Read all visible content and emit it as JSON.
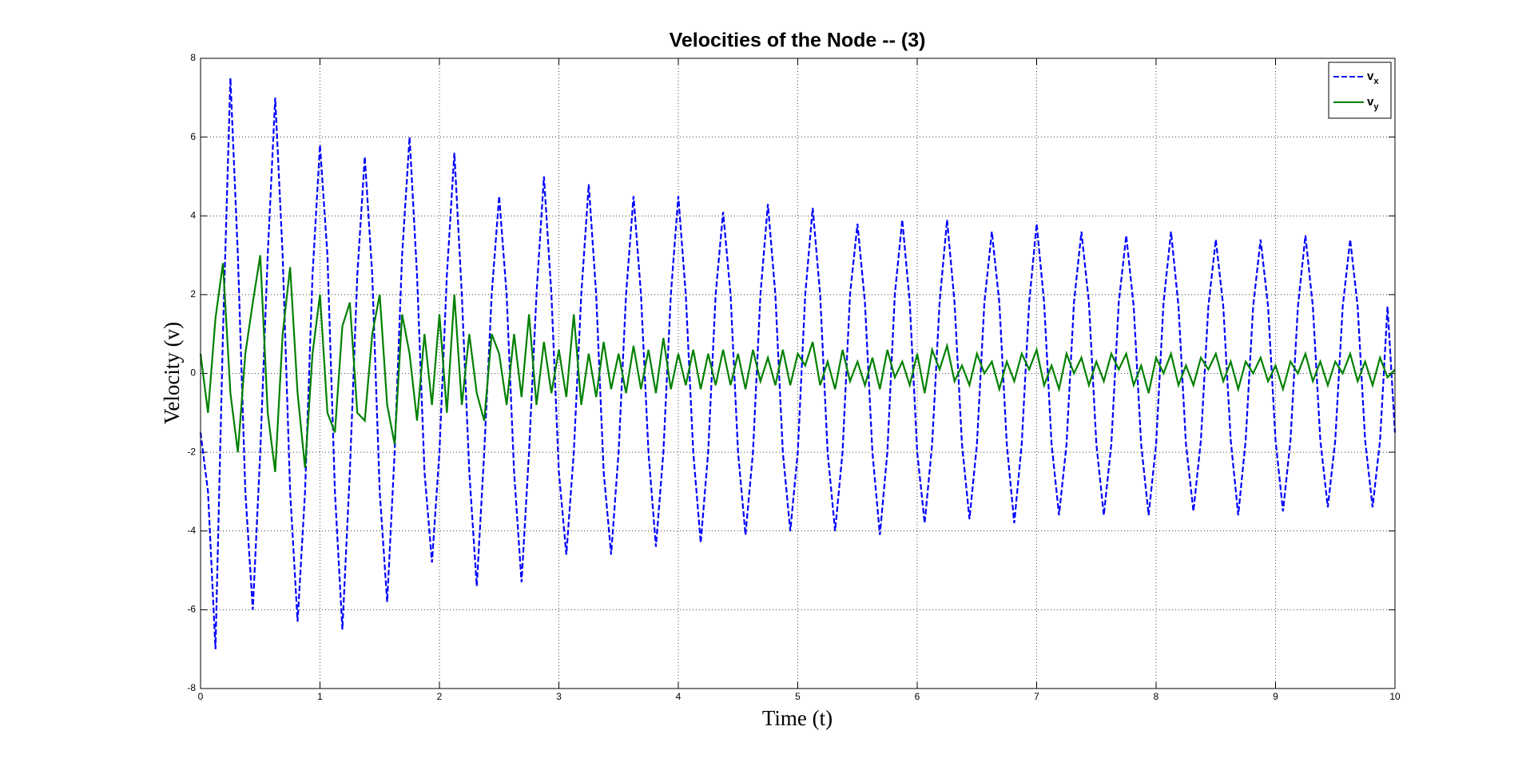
{
  "chart_data": {
    "type": "line",
    "title": "Velocities of the Node -- (3)",
    "x_label": "Time (t)",
    "y_label": "Velocity (v)",
    "x": [
      0,
      0.0625,
      0.125,
      0.1875,
      0.25,
      0.3125,
      0.375,
      0.4375,
      0.5,
      0.5625,
      0.625,
      0.6875,
      0.75,
      0.8125,
      0.875,
      0.9375,
      1,
      1.0625,
      1.125,
      1.1875,
      1.25,
      1.3125,
      1.375,
      1.4375,
      1.5,
      1.5625,
      1.625,
      1.6875,
      1.75,
      1.8125,
      1.875,
      1.9375,
      2,
      2.0625,
      2.125,
      2.1875,
      2.25,
      2.3125,
      2.375,
      2.4375,
      2.5,
      2.5625,
      2.625,
      2.6875,
      2.75,
      2.8125,
      2.875,
      2.9375,
      3,
      3.0625,
      3.125,
      3.1875,
      3.25,
      3.3125,
      3.375,
      3.4375,
      3.5,
      3.5625,
      3.625,
      3.6875,
      3.75,
      3.8125,
      3.875,
      3.9375,
      4,
      4.0625,
      4.125,
      4.1875,
      4.25,
      4.3125,
      4.375,
      4.4375,
      4.5,
      4.5625,
      4.625,
      4.6875,
      4.75,
      4.8125,
      4.875,
      4.9375,
      5,
      5.0625,
      5.125,
      5.1875,
      5.25,
      5.3125,
      5.375,
      5.4375,
      5.5,
      5.5625,
      5.625,
      5.6875,
      5.75,
      5.8125,
      5.875,
      5.9375,
      6,
      6.0625,
      6.125,
      6.1875,
      6.25,
      6.3125,
      6.375,
      6.4375,
      6.5,
      6.5625,
      6.625,
      6.6875,
      6.75,
      6.8125,
      6.875,
      6.9375,
      7,
      7.0625,
      7.125,
      7.1875,
      7.25,
      7.3125,
      7.375,
      7.4375,
      7.5,
      7.5625,
      7.625,
      7.6875,
      7.75,
      7.8125,
      7.875,
      7.9375,
      8,
      8.0625,
      8.125,
      8.1875,
      8.25,
      8.3125,
      8.375,
      8.4375,
      8.5,
      8.5625,
      8.625,
      8.6875,
      8.75,
      8.8125,
      8.875,
      8.9375,
      9,
      9.0625,
      9.125,
      9.1875,
      9.25,
      9.3125,
      9.375,
      9.4375,
      9.5,
      9.5625,
      9.625,
      9.6875,
      9.75,
      9.8125,
      9.875,
      9.9375,
      10
    ],
    "series": [
      {
        "name": "vx",
        "color": "#0000ff",
        "linestyle": "dashed",
        "values": [
          -1.5,
          -3,
          -7,
          1,
          7.5,
          3,
          -3,
          -6,
          -2,
          3,
          7,
          3,
          -3,
          -6.3,
          -3,
          2.5,
          5.8,
          3,
          -3,
          -6.5,
          -2.5,
          2.5,
          5.5,
          2.5,
          -3,
          -5.8,
          -2,
          3,
          6,
          2.5,
          -2.5,
          -4.8,
          -2,
          2.5,
          5.6,
          2,
          -2.5,
          -5.4,
          -2,
          2,
          4.5,
          2,
          -2.5,
          -5.3,
          -2,
          2,
          5,
          2,
          -2.5,
          -4.6,
          -2,
          2,
          4.8,
          2,
          -2.5,
          -4.6,
          -2,
          2,
          4.5,
          2,
          -2,
          -4.4,
          -2,
          2,
          4.5,
          2,
          -2,
          -4.3,
          -2,
          2,
          4.1,
          2,
          -2,
          -4.1,
          -2,
          2,
          4.3,
          2,
          -2,
          -4,
          -2,
          2,
          4.2,
          2,
          -2,
          -4,
          -2,
          2,
          3.8,
          1.8,
          -2,
          -4.1,
          -2,
          2,
          3.9,
          1.8,
          -2,
          -3.8,
          -1.8,
          1.8,
          3.9,
          1.8,
          -1.8,
          -3.7,
          -1.8,
          1.8,
          3.6,
          1.8,
          -1.8,
          -3.8,
          -1.8,
          1.8,
          3.8,
          1.8,
          -1.8,
          -3.6,
          -1.8,
          1.8,
          3.6,
          1.8,
          -1.8,
          -3.6,
          -1.8,
          1.8,
          3.5,
          1.7,
          -1.8,
          -3.6,
          -1.8,
          1.8,
          3.6,
          1.7,
          -1.8,
          -3.5,
          -1.7,
          1.7,
          3.4,
          1.7,
          -1.7,
          -3.6,
          -1.7,
          1.7,
          3.4,
          1.7,
          -1.7,
          -3.5,
          -1.7,
          1.7,
          3.5,
          1.7,
          -1.7,
          -3.4,
          -1.7,
          1.7,
          3.4,
          1.7,
          -1.7,
          -3.4,
          -1.7,
          1.7,
          -1.5
        ]
      },
      {
        "name": "vy",
        "color": "#008000",
        "linestyle": "solid",
        "values": [
          0.5,
          -1,
          1.4,
          2.8,
          -0.5,
          -2,
          0.5,
          1.8,
          3,
          -1,
          -2.5,
          1,
          2.7,
          -0.5,
          -2.4,
          0.5,
          2,
          -1,
          -1.5,
          1.2,
          1.8,
          -1,
          -1.2,
          1,
          2,
          -0.8,
          -1.8,
          1.5,
          0.5,
          -1.2,
          1,
          -0.8,
          1.5,
          -1,
          2,
          -0.8,
          1,
          -0.5,
          -1.2,
          1,
          0.5,
          -0.8,
          1,
          -0.6,
          1.5,
          -0.8,
          0.8,
          -0.5,
          0.6,
          -0.6,
          1.5,
          -0.8,
          0.5,
          -0.6,
          0.8,
          -0.4,
          0.5,
          -0.5,
          0.7,
          -0.4,
          0.6,
          -0.5,
          0.9,
          -0.4,
          0.5,
          -0.3,
          0.6,
          -0.4,
          0.5,
          -0.3,
          0.6,
          -0.3,
          0.5,
          -0.4,
          0.6,
          -0.2,
          0.4,
          -0.3,
          0.6,
          -0.3,
          0.5,
          0.2,
          0.8,
          -0.3,
          0.3,
          -0.4,
          0.6,
          -0.2,
          0.3,
          -0.3,
          0.4,
          -0.4,
          0.6,
          -0.1,
          0.3,
          -0.3,
          0.5,
          -0.5,
          0.6,
          0.1,
          0.7,
          -0.2,
          0.2,
          -0.3,
          0.5,
          0,
          0.3,
          -0.4,
          0.3,
          -0.2,
          0.5,
          0.1,
          0.6,
          -0.3,
          0.2,
          -0.4,
          0.5,
          0,
          0.4,
          -0.3,
          0.3,
          -0.2,
          0.5,
          0.1,
          0.5,
          -0.3,
          0.2,
          -0.5,
          0.4,
          0,
          0.5,
          -0.3,
          0.2,
          -0.3,
          0.4,
          0.1,
          0.5,
          -0.2,
          0.3,
          -0.4,
          0.3,
          0,
          0.4,
          -0.2,
          0.2,
          -0.4,
          0.3,
          0,
          0.5,
          -0.2,
          0.3,
          -0.3,
          0.3,
          0,
          0.5,
          -0.2,
          0.3,
          -0.3,
          0.4,
          -0.1,
          0.1
        ]
      }
    ],
    "xlim": [
      0,
      10
    ],
    "xticks": [
      0,
      1,
      2,
      3,
      4,
      5,
      6,
      7,
      8,
      9,
      10
    ],
    "ylim": [
      -8,
      8
    ],
    "yticks": [
      -8,
      -6,
      -4,
      -2,
      0,
      2,
      4,
      6,
      8
    ],
    "grid": true,
    "legend": "top-right"
  }
}
